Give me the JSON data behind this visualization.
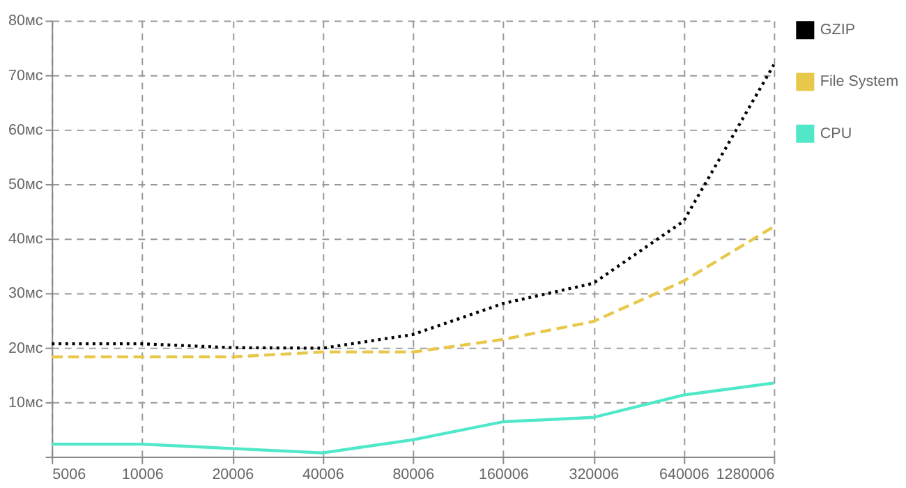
{
  "chart_data": {
    "type": "line",
    "categories": [
      "5006",
      "10006",
      "20006",
      "40006",
      "80006",
      "160006",
      "320006",
      "640006",
      "1280006"
    ],
    "series": [
      {
        "name": "GZIP",
        "color": "#000000",
        "line_style": "dotted",
        "values": [
          20.7,
          20.7,
          20.0,
          19.9,
          22.4,
          28.1,
          31.8,
          43.2,
          71.9
        ]
      },
      {
        "name": "File System",
        "color": "#e8c84a",
        "line_style": "dashed",
        "values": [
          18.3,
          18.3,
          18.3,
          19.2,
          19.2,
          21.5,
          24.8,
          32.2,
          42.2
        ]
      },
      {
        "name": "CPU",
        "color": "#50e8c8",
        "line_style": "solid",
        "values": [
          2.3,
          2.3,
          1.5,
          0.7,
          3.1,
          6.4,
          7.2,
          11.3,
          13.5
        ]
      }
    ],
    "ylim": [
      0,
      80
    ],
    "yticks": [
      {
        "value": 0,
        "label": null
      },
      {
        "value": 10,
        "label": "10мс"
      },
      {
        "value": 20,
        "label": "20мс"
      },
      {
        "value": 30,
        "label": "30мс"
      },
      {
        "value": 40,
        "label": "40мс"
      },
      {
        "value": 50,
        "label": "50мс"
      },
      {
        "value": 60,
        "label": "60мс"
      },
      {
        "value": 70,
        "label": "70мс"
      },
      {
        "value": 80,
        "label": "80мс"
      }
    ],
    "grid": true,
    "legend": "right",
    "marker": "none"
  }
}
